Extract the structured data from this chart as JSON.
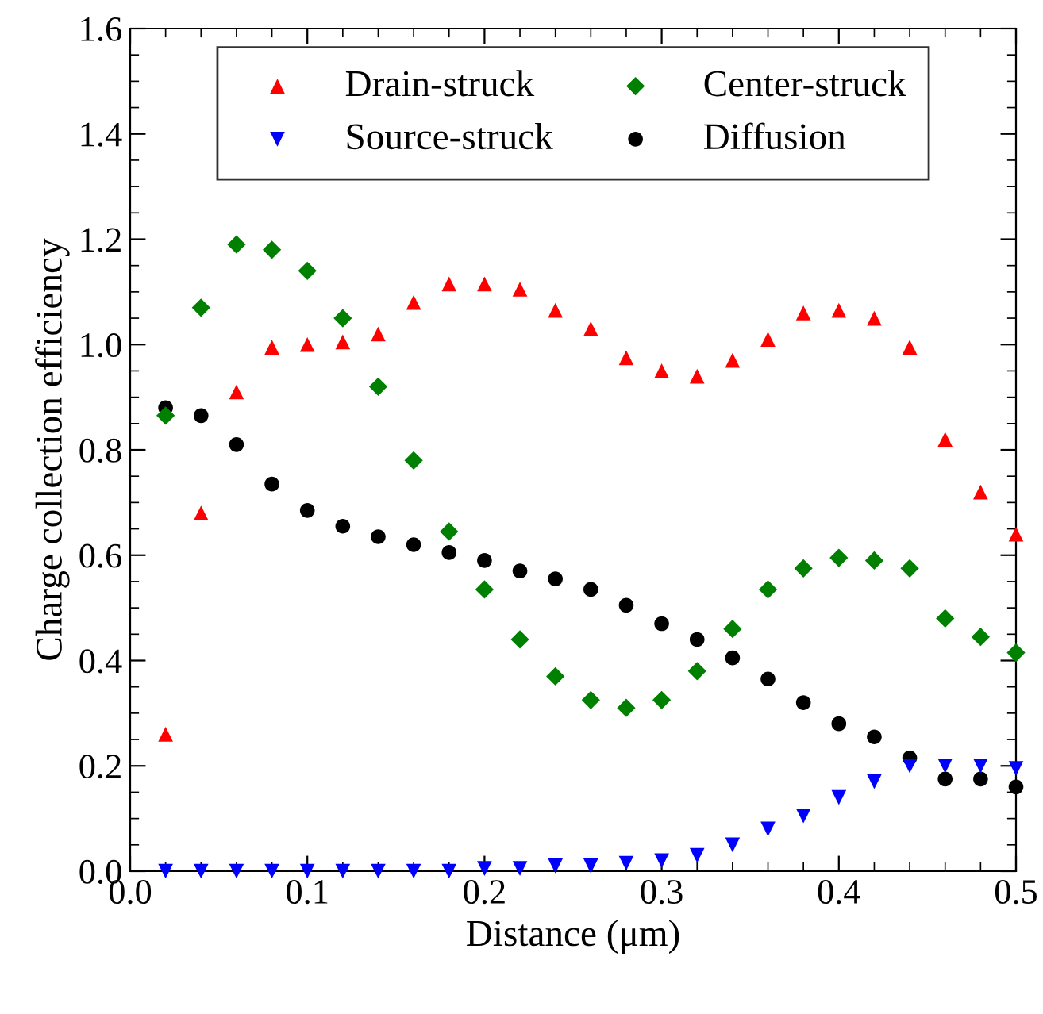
{
  "chart_data": {
    "type": "scatter",
    "xlabel": "Distance (μm)",
    "ylabel": "Charge collection efficiency",
    "x": [
      0.02,
      0.04,
      0.06,
      0.08,
      0.1,
      0.12,
      0.14,
      0.16,
      0.18,
      0.2,
      0.22,
      0.24,
      0.26,
      0.28,
      0.3,
      0.32,
      0.34,
      0.36,
      0.38,
      0.4,
      0.42,
      0.44,
      0.46,
      0.48,
      0.5
    ],
    "series": [
      {
        "name": "Drain-struck",
        "color": "#ff0000",
        "marker": "triangle",
        "values": [
          0.26,
          0.68,
          0.91,
          0.995,
          1.0,
          1.005,
          1.02,
          1.08,
          1.115,
          1.115,
          1.105,
          1.065,
          1.03,
          0.975,
          0.95,
          0.94,
          0.97,
          1.01,
          1.06,
          1.065,
          1.05,
          0.995,
          0.82,
          0.72,
          0.64
        ]
      },
      {
        "name": "Source-struck",
        "color": "#0000ff",
        "marker": "triangle_down",
        "values": [
          0,
          0,
          0,
          0,
          0,
          0,
          0,
          0,
          0,
          0.005,
          0.005,
          0.01,
          0.01,
          0.015,
          0.02,
          0.03,
          0.05,
          0.08,
          0.105,
          0.14,
          0.17,
          0.2,
          0.2,
          0.2,
          0.195
        ]
      },
      {
        "name": "Center-struck",
        "color": "#008000",
        "marker": "diamond",
        "values": [
          0.865,
          1.07,
          1.19,
          1.18,
          1.14,
          1.05,
          0.92,
          0.78,
          0.645,
          0.535,
          0.44,
          0.37,
          0.325,
          0.31,
          0.325,
          0.38,
          0.46,
          0.535,
          0.575,
          0.595,
          0.59,
          0.575,
          0.48,
          0.445,
          0.415
        ]
      },
      {
        "name": "Diffusion",
        "color": "#000000",
        "marker": "circle",
        "values": [
          0.88,
          0.865,
          0.81,
          0.735,
          0.685,
          0.655,
          0.635,
          0.62,
          0.605,
          0.59,
          0.57,
          0.555,
          0.535,
          0.505,
          0.47,
          0.44,
          0.405,
          0.365,
          0.32,
          0.28,
          0.255,
          0.215,
          0.175,
          0.175,
          0.16
        ]
      }
    ],
    "xlim": [
      0,
      0.5
    ],
    "ylim": [
      0,
      1.6
    ],
    "xticks": [
      {
        "value": 0,
        "label": "0.0"
      },
      0.1,
      0.2,
      0.3,
      0.4,
      0.5
    ],
    "yticks": [
      {
        "value": 0,
        "label": "0.0"
      },
      0.2,
      0.4,
      0.6,
      0.8,
      {
        "value": 1,
        "label": "1.0"
      },
      1.2,
      1.4,
      1.6
    ],
    "legend": "top",
    "grid": false
  }
}
